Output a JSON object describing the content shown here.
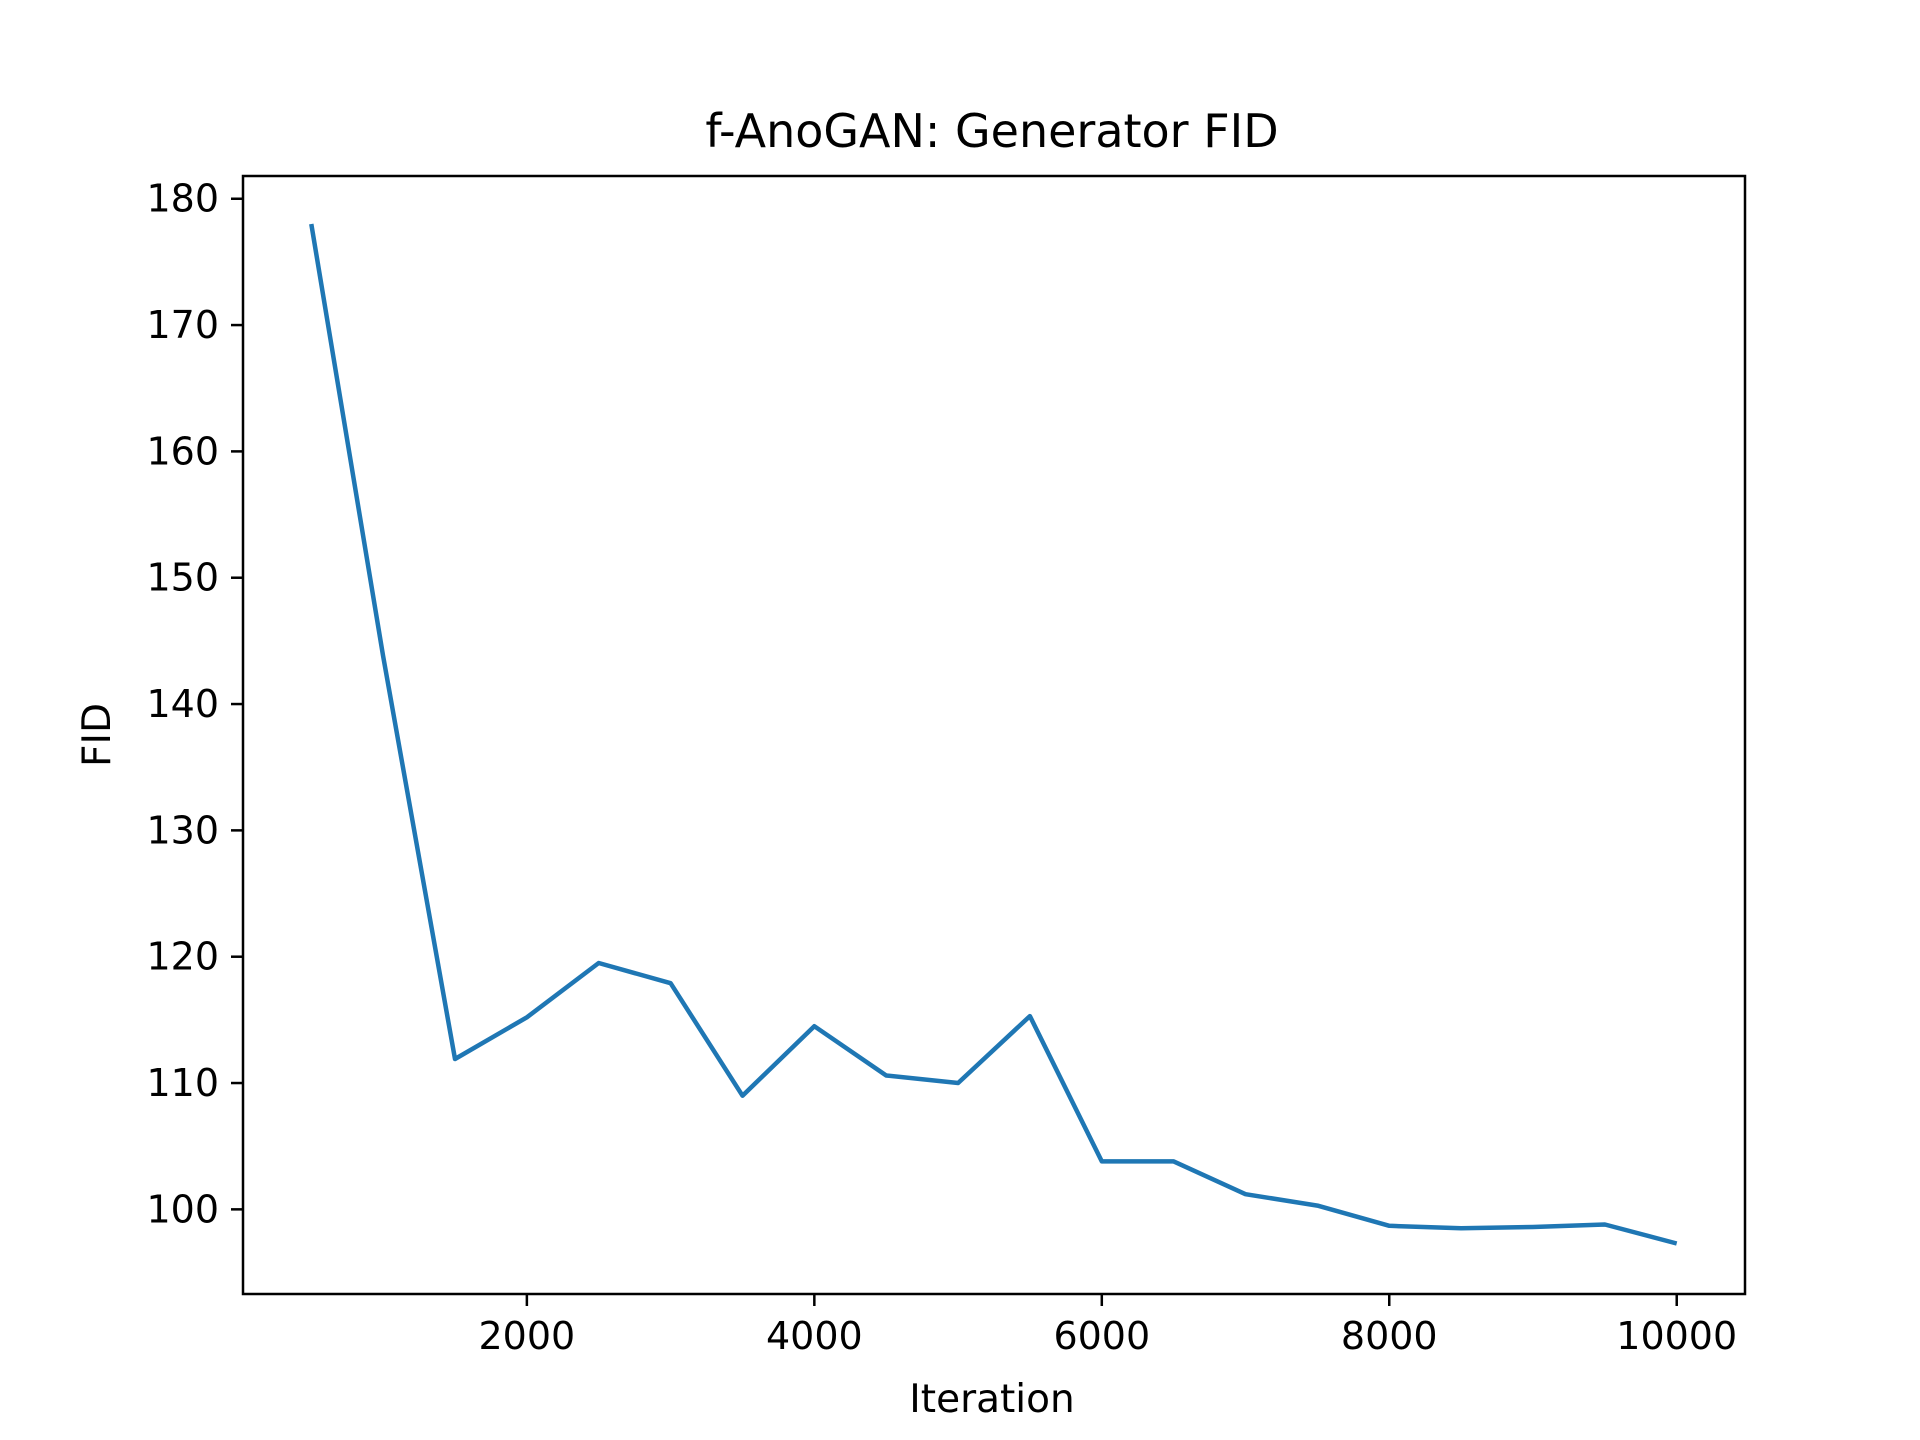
{
  "chart_data": {
    "type": "line",
    "title": "f-AnoGAN: Generator FID",
    "xlabel": "Iteration",
    "ylabel": "FID",
    "xlim": [
      25,
      10475
    ],
    "ylim": [
      93.3,
      181.8
    ],
    "xticks": [
      {
        "value": 2000,
        "label": "2000"
      },
      {
        "value": 4000,
        "label": "4000"
      },
      {
        "value": 6000,
        "label": "6000"
      },
      {
        "value": 8000,
        "label": "8000"
      },
      {
        "value": 10000,
        "label": "10000"
      }
    ],
    "yticks": [
      {
        "value": 100,
        "label": "100"
      },
      {
        "value": 110,
        "label": "110"
      },
      {
        "value": 120,
        "label": "120"
      },
      {
        "value": 130,
        "label": "130"
      },
      {
        "value": 140,
        "label": "140"
      },
      {
        "value": 150,
        "label": "150"
      },
      {
        "value": 160,
        "label": "160"
      },
      {
        "value": 170,
        "label": "170"
      },
      {
        "value": 180,
        "label": "180"
      }
    ],
    "grid": false,
    "series": [
      {
        "color": "#1f77b4",
        "x": [
          500,
          1000,
          1500,
          2000,
          2500,
          3000,
          3500,
          4000,
          4500,
          5000,
          5500,
          6000,
          6500,
          7000,
          7500,
          8000,
          8500,
          9000,
          9500,
          10000
        ],
        "y": [
          178.0,
          143.8,
          111.9,
          115.2,
          119.5,
          117.9,
          109.0,
          114.5,
          110.6,
          110.0,
          115.3,
          103.8,
          103.8,
          101.2,
          100.3,
          98.7,
          98.5,
          98.6,
          98.8,
          97.3
        ]
      }
    ]
  }
}
